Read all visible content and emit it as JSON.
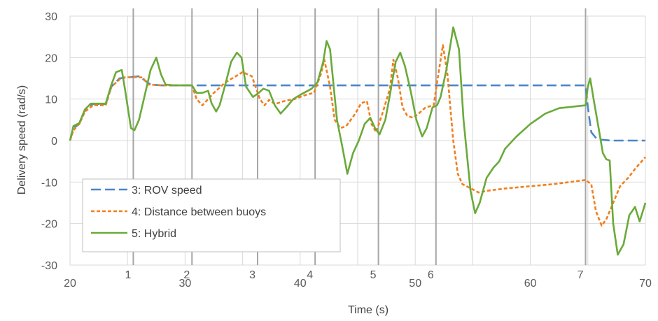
{
  "chart_data": {
    "type": "line",
    "title": "",
    "xlabel": "Time (s)",
    "ylabel": "Delivery speed (rad/s)",
    "xlim": [
      20,
      70
    ],
    "ylim": [
      -30,
      30
    ],
    "x_ticks": [
      20,
      30,
      40,
      50,
      60,
      70
    ],
    "y_ticks": [
      30,
      20,
      10,
      0,
      -10,
      -20,
      -30
    ],
    "grid": "horizontal and vertical",
    "legend_position": "bottom-left",
    "event_markers": [
      {
        "label": "1",
        "x": 25.5
      },
      {
        "label": "2",
        "x": 30.6
      },
      {
        "label": "3",
        "x": 36.3
      },
      {
        "label": "4",
        "x": 41.3
      },
      {
        "label": "5",
        "x": 46.8
      },
      {
        "label": "6",
        "x": 51.8
      },
      {
        "label": "7",
        "x": 64.8
      }
    ],
    "series": [
      {
        "name": "3: ROV speed",
        "color": "#4a86c8",
        "dash": "long-dash",
        "points": [
          [
            20,
            0
          ],
          [
            20.3,
            3
          ],
          [
            20.8,
            4
          ],
          [
            21.3,
            7.5
          ],
          [
            22,
            8.8
          ],
          [
            23.1,
            8.8
          ],
          [
            23.6,
            13
          ],
          [
            24.3,
            15
          ],
          [
            25,
            15.2
          ],
          [
            26,
            15.5
          ],
          [
            27,
            13.5
          ],
          [
            28,
            13.3
          ],
          [
            30.6,
            13.3
          ],
          [
            64.8,
            13.3
          ],
          [
            65.0,
            8
          ],
          [
            65.3,
            2
          ],
          [
            65.8,
            0.3
          ],
          [
            67,
            0
          ],
          [
            70,
            0
          ]
        ]
      },
      {
        "name": "4: Distance between buoys",
        "color": "#f07f1e",
        "dash": "short-dash",
        "points": [
          [
            20,
            0
          ],
          [
            20.3,
            2.5
          ],
          [
            20.8,
            4
          ],
          [
            21.3,
            7
          ],
          [
            22,
            8.5
          ],
          [
            23.1,
            8.5
          ],
          [
            23.6,
            13
          ],
          [
            24.5,
            15.2
          ],
          [
            25.5,
            15.3
          ],
          [
            26.3,
            15.2
          ],
          [
            26.8,
            13.5
          ],
          [
            28,
            13.3
          ],
          [
            30.6,
            13.3
          ],
          [
            31,
            10
          ],
          [
            31.5,
            8.5
          ],
          [
            32.5,
            11.5
          ],
          [
            33.5,
            14
          ],
          [
            35,
            16.5
          ],
          [
            35.8,
            15.5
          ],
          [
            36.5,
            10
          ],
          [
            36.9,
            8.5
          ],
          [
            37.3,
            9.8
          ],
          [
            37.8,
            8.8
          ],
          [
            38.6,
            9.5
          ],
          [
            39.5,
            10
          ],
          [
            40.5,
            11
          ],
          [
            41.2,
            11.5
          ],
          [
            41.8,
            16
          ],
          [
            42.1,
            19.5
          ],
          [
            42.6,
            13
          ],
          [
            43,
            5
          ],
          [
            43.5,
            3
          ],
          [
            44,
            3.5
          ],
          [
            44.8,
            6.5
          ],
          [
            45.3,
            9
          ],
          [
            45.8,
            9.5
          ],
          [
            46.2,
            4
          ],
          [
            46.6,
            2
          ],
          [
            47.2,
            7
          ],
          [
            47.8,
            12.5
          ],
          [
            48.1,
            19.5
          ],
          [
            48.5,
            15
          ],
          [
            48.9,
            8
          ],
          [
            49.3,
            6
          ],
          [
            49.8,
            5.5
          ],
          [
            50.3,
            6.5
          ],
          [
            50.9,
            8
          ],
          [
            51.6,
            8.5
          ],
          [
            51.9,
            14
          ],
          [
            52.4,
            23
          ],
          [
            52.8,
            16
          ],
          [
            53.3,
            0
          ],
          [
            53.7,
            -8
          ],
          [
            54.1,
            -10.5
          ],
          [
            54.8,
            -11.5
          ],
          [
            55.5,
            -12.5
          ],
          [
            56.5,
            -12
          ],
          [
            58,
            -11.5
          ],
          [
            60,
            -11
          ],
          [
            62,
            -10.5
          ],
          [
            64.8,
            -9.5
          ],
          [
            65.3,
            -10.5
          ],
          [
            65.7,
            -17
          ],
          [
            66.2,
            -20.5
          ],
          [
            66.6,
            -19
          ],
          [
            67.2,
            -15
          ],
          [
            67.8,
            -11
          ],
          [
            68.5,
            -9
          ],
          [
            69.2,
            -6.5
          ],
          [
            70,
            -4
          ]
        ]
      },
      {
        "name": "5: Hybrid",
        "color": "#6aaa3a",
        "dash": "solid",
        "points": [
          [
            20,
            0
          ],
          [
            20.3,
            3.5
          ],
          [
            20.8,
            4.2
          ],
          [
            21.3,
            7.5
          ],
          [
            21.8,
            8.9
          ],
          [
            23.1,
            8.9
          ],
          [
            23.6,
            13.5
          ],
          [
            24,
            16.5
          ],
          [
            24.5,
            17
          ],
          [
            24.8,
            12
          ],
          [
            25.3,
            3
          ],
          [
            25.6,
            2.5
          ],
          [
            26,
            5
          ],
          [
            26.5,
            11
          ],
          [
            27,
            17
          ],
          [
            27.5,
            20
          ],
          [
            27.9,
            16
          ],
          [
            28.3,
            13.5
          ],
          [
            29,
            13.3
          ],
          [
            30.6,
            13.3
          ],
          [
            31,
            11.5
          ],
          [
            31.5,
            11.5
          ],
          [
            32,
            12
          ],
          [
            32.3,
            9
          ],
          [
            32.7,
            7
          ],
          [
            33,
            8.5
          ],
          [
            33.5,
            13.5
          ],
          [
            34,
            19
          ],
          [
            34.5,
            21.2
          ],
          [
            34.9,
            20
          ],
          [
            35.3,
            13
          ],
          [
            35.9,
            10.5
          ],
          [
            36.4,
            11.5
          ],
          [
            36.8,
            12.5
          ],
          [
            37.3,
            12
          ],
          [
            37.8,
            8.5
          ],
          [
            38.3,
            6.5
          ],
          [
            38.8,
            8
          ],
          [
            39.4,
            10
          ],
          [
            40,
            11
          ],
          [
            41,
            12.5
          ],
          [
            41.5,
            14
          ],
          [
            42,
            19
          ],
          [
            42.3,
            24
          ],
          [
            42.6,
            22
          ],
          [
            43.2,
            5
          ],
          [
            43.7,
            -2
          ],
          [
            44.1,
            -8
          ],
          [
            44.6,
            -3
          ],
          [
            45.1,
            0
          ],
          [
            45.6,
            4
          ],
          [
            46.1,
            5.5
          ],
          [
            46.5,
            3
          ],
          [
            46.9,
            1.5
          ],
          [
            47.4,
            5
          ],
          [
            47.8,
            11
          ],
          [
            48.3,
            19
          ],
          [
            48.7,
            21.2
          ],
          [
            49.1,
            18
          ],
          [
            49.6,
            12
          ],
          [
            50.1,
            5
          ],
          [
            50.6,
            1
          ],
          [
            51,
            3
          ],
          [
            51.5,
            8
          ],
          [
            51.9,
            8.5
          ],
          [
            52.2,
            10.5
          ],
          [
            52.7,
            17
          ],
          [
            53.3,
            27.3
          ],
          [
            53.8,
            22
          ],
          [
            54.2,
            5
          ],
          [
            54.8,
            -12
          ],
          [
            55.2,
            -17.5
          ],
          [
            55.6,
            -15
          ],
          [
            56.2,
            -9
          ],
          [
            56.8,
            -6.5
          ],
          [
            57.3,
            -5
          ],
          [
            57.8,
            -2
          ],
          [
            58.8,
            1
          ],
          [
            60,
            4
          ],
          [
            61.3,
            6.5
          ],
          [
            62.5,
            7.8
          ],
          [
            64.8,
            8.5
          ],
          [
            65,
            13
          ],
          [
            65.2,
            15
          ],
          [
            65.5,
            10
          ],
          [
            66,
            2
          ],
          [
            66.3,
            -3
          ],
          [
            66.6,
            -4.5
          ],
          [
            66.9,
            -4.8
          ],
          [
            67.2,
            -20
          ],
          [
            67.6,
            -27.5
          ],
          [
            68.1,
            -25
          ],
          [
            68.6,
            -18
          ],
          [
            69.1,
            -16
          ],
          [
            69.5,
            -19.5
          ],
          [
            70,
            -15
          ]
        ]
      }
    ]
  }
}
